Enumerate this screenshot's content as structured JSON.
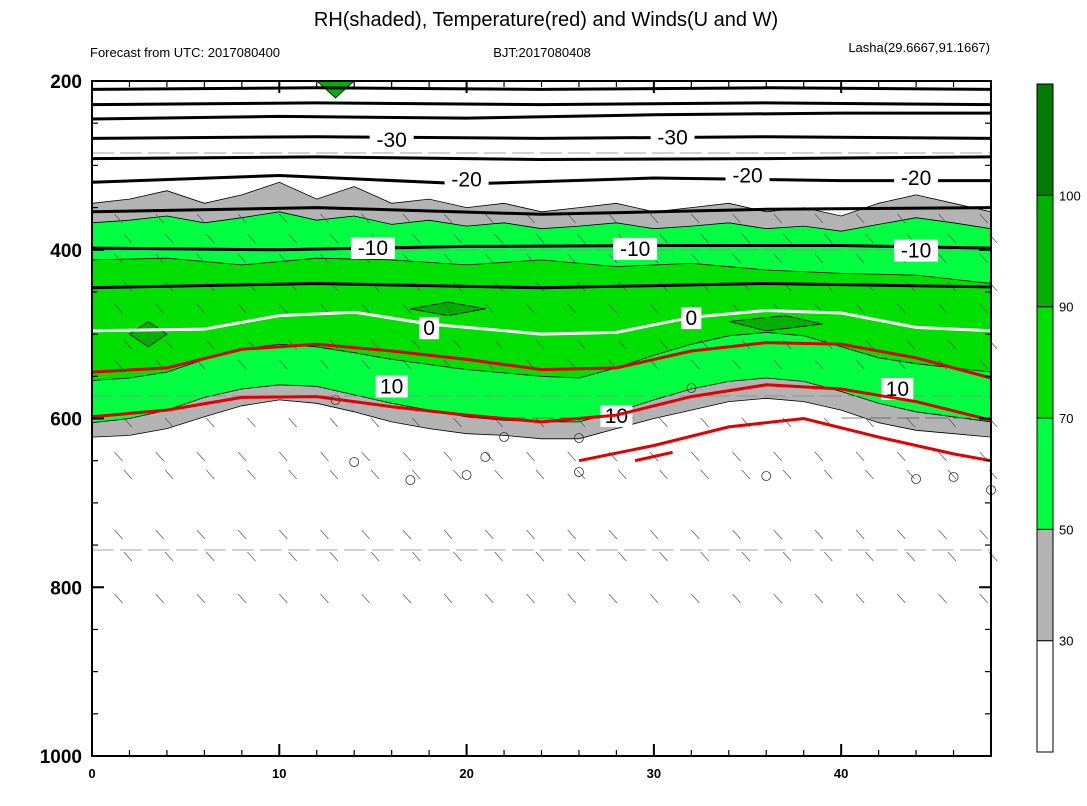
{
  "chart_data": {
    "type": "contour",
    "title": "RH(shaded), Temperature(red) and Winds(U and W)",
    "subtitle_left": "Forecast from UTC: 2017080400",
    "subtitle_center": "BJT:2017080408",
    "subtitle_right": "Lasha(29.6667,91.1667)",
    "x_range": [
      0,
      48
    ],
    "x_ticks": [
      "0",
      "10",
      "20",
      "30",
      "40"
    ],
    "x_tick_values": [
      0,
      10,
      20,
      30,
      40
    ],
    "y_range": [
      1000,
      200
    ],
    "y_ticks": [
      "200",
      "400",
      "600",
      "800",
      "1000"
    ],
    "y_tick_values": [
      200,
      400,
      600,
      800,
      1000
    ],
    "colorbar": {
      "labels": [
        "30",
        "50",
        "70",
        "90",
        "100"
      ],
      "levels": [
        30,
        50,
        70,
        90,
        100
      ],
      "colors": [
        "#ffffff",
        "#b3b3b3",
        "#00ff40",
        "#00e000",
        "#00b000",
        "#007a00"
      ]
    },
    "rh_regions": [
      {
        "level": 30,
        "color": "#b3b3b3",
        "top": [
          [
            0,
            345
          ],
          [
            2,
            340
          ],
          [
            4,
            330
          ],
          [
            6,
            345
          ],
          [
            8,
            335
          ],
          [
            10,
            320
          ],
          [
            12,
            340
          ],
          [
            14,
            325
          ],
          [
            16,
            345
          ],
          [
            18,
            340
          ],
          [
            20,
            350
          ],
          [
            22,
            345
          ],
          [
            24,
            355
          ],
          [
            26,
            350
          ],
          [
            28,
            345
          ],
          [
            30,
            355
          ],
          [
            32,
            350
          ],
          [
            34,
            345
          ],
          [
            36,
            355
          ],
          [
            38,
            350
          ],
          [
            40,
            360
          ],
          [
            42,
            345
          ],
          [
            44,
            335
          ],
          [
            46,
            345
          ],
          [
            48,
            355
          ]
        ],
        "bottom": [
          [
            0,
            622
          ],
          [
            2,
            620
          ],
          [
            4,
            612
          ],
          [
            6,
            598
          ],
          [
            8,
            585
          ],
          [
            10,
            578
          ],
          [
            12,
            582
          ],
          [
            14,
            592
          ],
          [
            16,
            604
          ],
          [
            18,
            612
          ],
          [
            20,
            618
          ],
          [
            22,
            620
          ],
          [
            24,
            624
          ],
          [
            26,
            624
          ],
          [
            28,
            612
          ],
          [
            30,
            600
          ],
          [
            32,
            590
          ],
          [
            34,
            580
          ],
          [
            36,
            576
          ],
          [
            38,
            580
          ],
          [
            40,
            590
          ],
          [
            42,
            605
          ],
          [
            44,
            614
          ],
          [
            46,
            618
          ],
          [
            48,
            622
          ]
        ]
      },
      {
        "level": 50,
        "color": "#00ff40",
        "top": [
          [
            0,
            368
          ],
          [
            2,
            365
          ],
          [
            4,
            360
          ],
          [
            6,
            368
          ],
          [
            8,
            362
          ],
          [
            10,
            355
          ],
          [
            12,
            365
          ],
          [
            14,
            360
          ],
          [
            16,
            370
          ],
          [
            18,
            365
          ],
          [
            20,
            372
          ],
          [
            22,
            368
          ],
          [
            24,
            375
          ],
          [
            26,
            372
          ],
          [
            28,
            368
          ],
          [
            30,
            375
          ],
          [
            32,
            372
          ],
          [
            34,
            368
          ],
          [
            36,
            375
          ],
          [
            38,
            372
          ],
          [
            40,
            378
          ],
          [
            42,
            370
          ],
          [
            44,
            362
          ],
          [
            46,
            368
          ],
          [
            48,
            375
          ]
        ],
        "bottom": [
          [
            0,
            605
          ],
          [
            2,
            600
          ],
          [
            4,
            590
          ],
          [
            6,
            575
          ],
          [
            8,
            565
          ],
          [
            10,
            560
          ],
          [
            12,
            562
          ],
          [
            14,
            572
          ],
          [
            16,
            582
          ],
          [
            18,
            590
          ],
          [
            20,
            598
          ],
          [
            22,
            602
          ],
          [
            24,
            604
          ],
          [
            26,
            604
          ],
          [
            28,
            592
          ],
          [
            30,
            578
          ],
          [
            32,
            565
          ],
          [
            34,
            556
          ],
          [
            36,
            552
          ],
          [
            38,
            556
          ],
          [
            40,
            568
          ],
          [
            42,
            582
          ],
          [
            44,
            592
          ],
          [
            46,
            598
          ],
          [
            48,
            604
          ]
        ]
      },
      {
        "level": 70,
        "color": "#00e000",
        "top": [
          [
            0,
            412
          ],
          [
            4,
            410
          ],
          [
            8,
            418
          ],
          [
            12,
            410
          ],
          [
            16,
            412
          ],
          [
            20,
            418
          ],
          [
            24,
            412
          ],
          [
            28,
            420
          ],
          [
            32,
            416
          ],
          [
            36,
            424
          ],
          [
            40,
            428
          ],
          [
            44,
            430
          ],
          [
            48,
            440
          ]
        ],
        "bottom": [
          [
            0,
            555
          ],
          [
            2,
            552
          ],
          [
            4,
            545
          ],
          [
            6,
            530
          ],
          [
            8,
            518
          ],
          [
            10,
            512
          ],
          [
            12,
            515
          ],
          [
            14,
            522
          ],
          [
            16,
            530
          ],
          [
            18,
            536
          ],
          [
            20,
            542
          ],
          [
            22,
            546
          ],
          [
            24,
            550
          ],
          [
            26,
            552
          ],
          [
            28,
            540
          ],
          [
            30,
            525
          ],
          [
            32,
            512
          ],
          [
            34,
            502
          ],
          [
            36,
            498
          ],
          [
            38,
            502
          ],
          [
            40,
            515
          ],
          [
            42,
            528
          ],
          [
            44,
            535
          ],
          [
            46,
            540
          ],
          [
            48,
            545
          ]
        ]
      },
      {
        "level": 90,
        "color": "#00b000",
        "blobs": [
          [
            [
              2,
              500
            ],
            [
              3,
              485
            ],
            [
              4,
              500
            ],
            [
              3,
              515
            ]
          ],
          [
            [
              17,
              470
            ],
            [
              19,
              462
            ],
            [
              21,
              470
            ],
            [
              19,
              478
            ]
          ],
          [
            [
              34,
              485
            ],
            [
              37,
              478
            ],
            [
              39,
              488
            ],
            [
              36,
              496
            ]
          ]
        ]
      },
      {
        "level": 100,
        "color": "#00b000",
        "blobs": [
          [
            [
              12,
              200
            ],
            [
              13,
              220
            ],
            [
              14,
              200
            ]
          ]
        ]
      }
    ],
    "temperature_isotherms": [
      {
        "label": "-30",
        "color": "#000000",
        "points": [
          [
            0,
            245
          ],
          [
            10,
            242
          ],
          [
            20,
            244
          ],
          [
            30,
            240
          ],
          [
            40,
            238
          ],
          [
            48,
            238
          ]
        ],
        "label_at": [
          [
            16,
            270
          ],
          [
            31,
            267
          ]
        ]
      },
      {
        "label": "-20",
        "color": "#000000",
        "points": [
          [
            0,
            320
          ],
          [
            10,
            312
          ],
          [
            20,
            322
          ],
          [
            30,
            315
          ],
          [
            40,
            318
          ],
          [
            48,
            318
          ]
        ],
        "label_at": [
          [
            20,
            317
          ],
          [
            35,
            312
          ],
          [
            44,
            315
          ]
        ]
      },
      {
        "label": "-10",
        "color": "#000000",
        "points": [
          [
            0,
            398
          ],
          [
            10,
            400
          ],
          [
            20,
            396
          ],
          [
            30,
            395
          ],
          [
            40,
            395
          ],
          [
            48,
            398
          ]
        ],
        "label_at": [
          [
            15,
            398
          ],
          [
            29,
            399
          ],
          [
            44,
            401
          ]
        ]
      },
      {
        "label": "0",
        "color": "#ffffff",
        "points": [
          [
            0,
            496
          ],
          [
            6,
            494
          ],
          [
            10,
            478
          ],
          [
            14,
            474
          ],
          [
            18,
            488
          ],
          [
            24,
            500
          ],
          [
            28,
            498
          ],
          [
            32,
            480
          ],
          [
            36,
            472
          ],
          [
            40,
            475
          ],
          [
            44,
            492
          ],
          [
            48,
            496
          ]
        ],
        "label_at": [
          [
            18,
            493
          ],
          [
            32,
            481
          ]
        ]
      },
      {
        "label": "10",
        "color": "#e00000",
        "points": [
          [
            0,
            545
          ],
          [
            4,
            540
          ],
          [
            8,
            518
          ],
          [
            12,
            512
          ],
          [
            16,
            520
          ],
          [
            20,
            530
          ],
          [
            24,
            542
          ],
          [
            28,
            540
          ],
          [
            32,
            520
          ],
          [
            36,
            510
          ],
          [
            40,
            512
          ],
          [
            44,
            528
          ],
          [
            48,
            552
          ]
        ],
        "label_at": [
          [
            16,
            562
          ],
          [
            28,
            597
          ],
          [
            43,
            565
          ]
        ]
      },
      {
        "label": "10",
        "color": "#e00000",
        "points": [
          [
            0,
            598
          ],
          [
            4,
            590
          ],
          [
            8,
            575
          ],
          [
            12,
            574
          ],
          [
            16,
            586
          ],
          [
            20,
            596
          ],
          [
            24,
            604
          ],
          [
            28,
            596
          ],
          [
            32,
            574
          ],
          [
            36,
            560
          ],
          [
            40,
            565
          ],
          [
            44,
            580
          ],
          [
            48,
            602
          ]
        ],
        "label_at": []
      }
    ],
    "extra_lines": [
      {
        "color": "#000000",
        "points": [
          [
            0,
            210
          ],
          [
            12,
            208
          ],
          [
            24,
            210
          ],
          [
            36,
            208
          ],
          [
            48,
            210
          ]
        ]
      },
      {
        "color": "#000000",
        "points": [
          [
            0,
            228
          ],
          [
            12,
            226
          ],
          [
            24,
            228
          ],
          [
            36,
            226
          ],
          [
            48,
            228
          ]
        ]
      },
      {
        "color": "#000000",
        "points": [
          [
            0,
            268
          ],
          [
            12,
            266
          ],
          [
            24,
            268
          ],
          [
            36,
            266
          ],
          [
            48,
            268
          ]
        ]
      },
      {
        "color": "#000000",
        "points": [
          [
            0,
            292
          ],
          [
            12,
            290
          ],
          [
            24,
            293
          ],
          [
            36,
            292
          ],
          [
            48,
            290
          ]
        ]
      },
      {
        "color": "#000000",
        "points": [
          [
            0,
            355
          ],
          [
            12,
            350
          ],
          [
            24,
            358
          ],
          [
            36,
            352
          ],
          [
            48,
            350
          ]
        ]
      },
      {
        "color": "#000000",
        "points": [
          [
            0,
            445
          ],
          [
            12,
            440
          ],
          [
            24,
            445
          ],
          [
            36,
            440
          ],
          [
            48,
            444
          ]
        ]
      },
      {
        "color": "#e00000",
        "points": [
          [
            26,
            650
          ],
          [
            30,
            632
          ],
          [
            34,
            610
          ],
          [
            38,
            600
          ],
          [
            42,
            622
          ],
          [
            46,
            642
          ],
          [
            48,
            650
          ]
        ]
      },
      {
        "color": "#e00000",
        "points": [
          [
            29,
            650
          ],
          [
            31,
            640
          ]
        ]
      }
    ]
  }
}
